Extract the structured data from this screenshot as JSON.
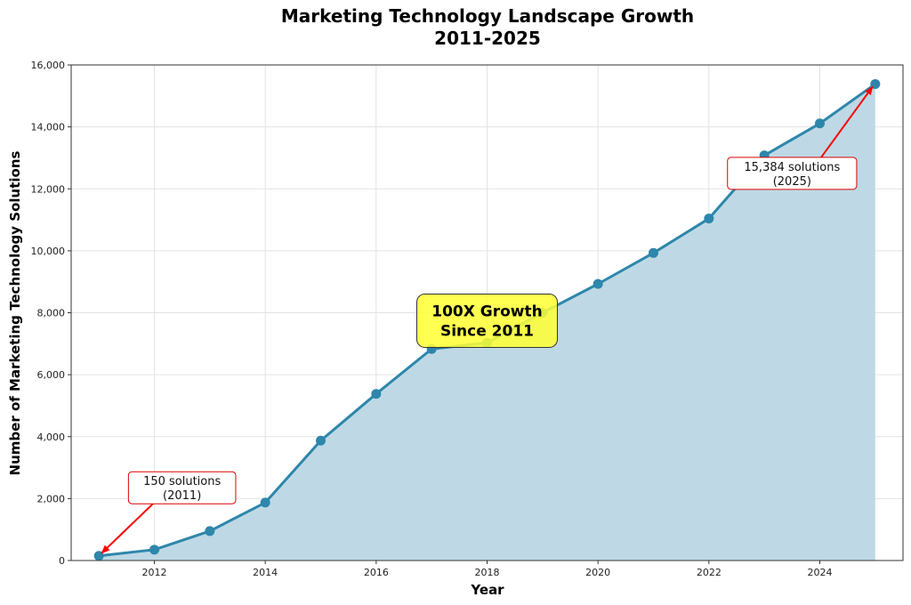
{
  "chart_data": {
    "type": "area",
    "title": "Marketing Technology Landscape Growth",
    "subtitle": "2011-2025",
    "xlabel": "Year",
    "ylabel": "Number of Marketing Technology Solutions",
    "x": [
      2011,
      2012,
      2013,
      2014,
      2015,
      2016,
      2017,
      2018,
      2019,
      2020,
      2021,
      2022,
      2023,
      2024,
      2025
    ],
    "series": [
      {
        "name": "Marketing Technology Solutions",
        "values": [
          150,
          350,
          950,
          1870,
          3870,
          5380,
          6830,
          7030,
          8000,
          8930,
          9930,
          11040,
          13080,
          14110,
          15384
        ],
        "color": "#2e86ab",
        "fill_color": "#bed9e5"
      }
    ],
    "xlim": [
      2010.5,
      2025.5
    ],
    "ylim": [
      0,
      16000
    ],
    "xticks": [
      2012,
      2014,
      2016,
      2018,
      2020,
      2022,
      2024
    ],
    "yticks": [
      0,
      2000,
      4000,
      6000,
      8000,
      10000,
      12000,
      14000,
      16000
    ],
    "ytick_labels": [
      "0",
      "2,000",
      "4,000",
      "6,000",
      "8,000",
      "10,000",
      "12,000",
      "14,000",
      "16,000"
    ],
    "grid": true,
    "legend": "none",
    "annotations": [
      {
        "id": "start",
        "line1": "150 solutions",
        "line2": "(2011)",
        "target_x": 2011,
        "target_y": 150,
        "text_x": 2012.5,
        "text_y": 2350,
        "border_color": "#dd0000",
        "arrow_color": "#ff0000"
      },
      {
        "id": "end",
        "line1": "15,384 solutions",
        "line2": "(2025)",
        "target_x": 2025,
        "target_y": 15384,
        "text_x": 2023.5,
        "text_y": 12500,
        "border_color": "#dd0000",
        "arrow_color": "#ff0000"
      }
    ],
    "callout": {
      "line1": "100X Growth",
      "line2": "Since 2011",
      "center_x": 2018,
      "center_y": 7800,
      "bg_color": "#ffff33",
      "border_color": "#333333"
    }
  }
}
